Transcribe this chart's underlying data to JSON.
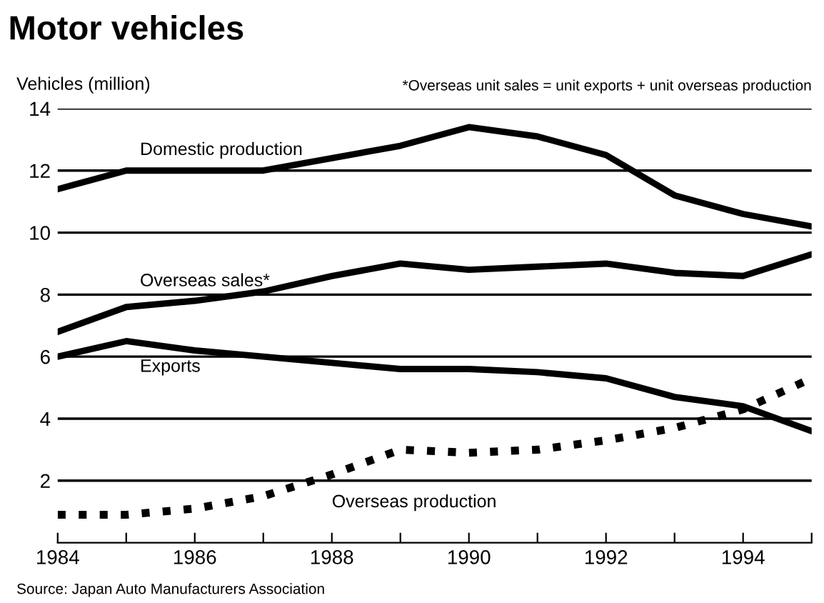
{
  "chart_data": {
    "type": "line",
    "title": "Motor vehicles",
    "ylabel": "Vehicles (million)",
    "annotations": [
      "*Overseas unit sales = unit exports + unit overseas production",
      "Source: Japan Auto Manufacturers Association"
    ],
    "x": [
      1984,
      1985,
      1986,
      1987,
      1988,
      1989,
      1990,
      1991,
      1992,
      1993,
      1994,
      1995
    ],
    "series": [
      {
        "name": "Domestic production",
        "color": "#000000",
        "line_style": "solid",
        "values": [
          11.4,
          12.0,
          12.0,
          12.0,
          12.4,
          12.8,
          13.4,
          13.1,
          12.5,
          11.2,
          10.6,
          10.2
        ]
      },
      {
        "name": "Overseas sales*",
        "color": "#000000",
        "line_style": "solid",
        "values": [
          6.8,
          7.6,
          7.8,
          8.1,
          8.6,
          9.0,
          8.8,
          8.9,
          9.0,
          8.7,
          8.6,
          9.3
        ]
      },
      {
        "name": "Exports",
        "color": "#000000",
        "line_style": "solid",
        "values": [
          6.0,
          6.5,
          6.2,
          6.0,
          5.8,
          5.6,
          5.6,
          5.5,
          5.3,
          4.7,
          4.4,
          3.6
        ]
      },
      {
        "name": "Overseas production",
        "color": "#000000",
        "line_style": "dotted",
        "values": [
          0.9,
          0.9,
          1.1,
          1.5,
          2.2,
          3.0,
          2.9,
          3.0,
          3.3,
          3.7,
          4.3,
          5.3
        ]
      }
    ],
    "xlim": [
      1984,
      1995
    ],
    "xticks": [
      1984,
      {
        "value": 1985,
        "label": null
      },
      1986,
      {
        "value": 1987,
        "label": null
      },
      1988,
      {
        "value": 1989,
        "label": null
      },
      1990,
      {
        "value": 1991,
        "label": null
      },
      1992,
      {
        "value": 1993,
        "label": null
      },
      1994,
      {
        "value": 1995,
        "label": null
      }
    ],
    "ylim": [
      0,
      14
    ],
    "yticks": [
      2,
      4,
      6,
      8,
      10,
      12,
      14
    ],
    "grid": "y",
    "legend": false
  }
}
